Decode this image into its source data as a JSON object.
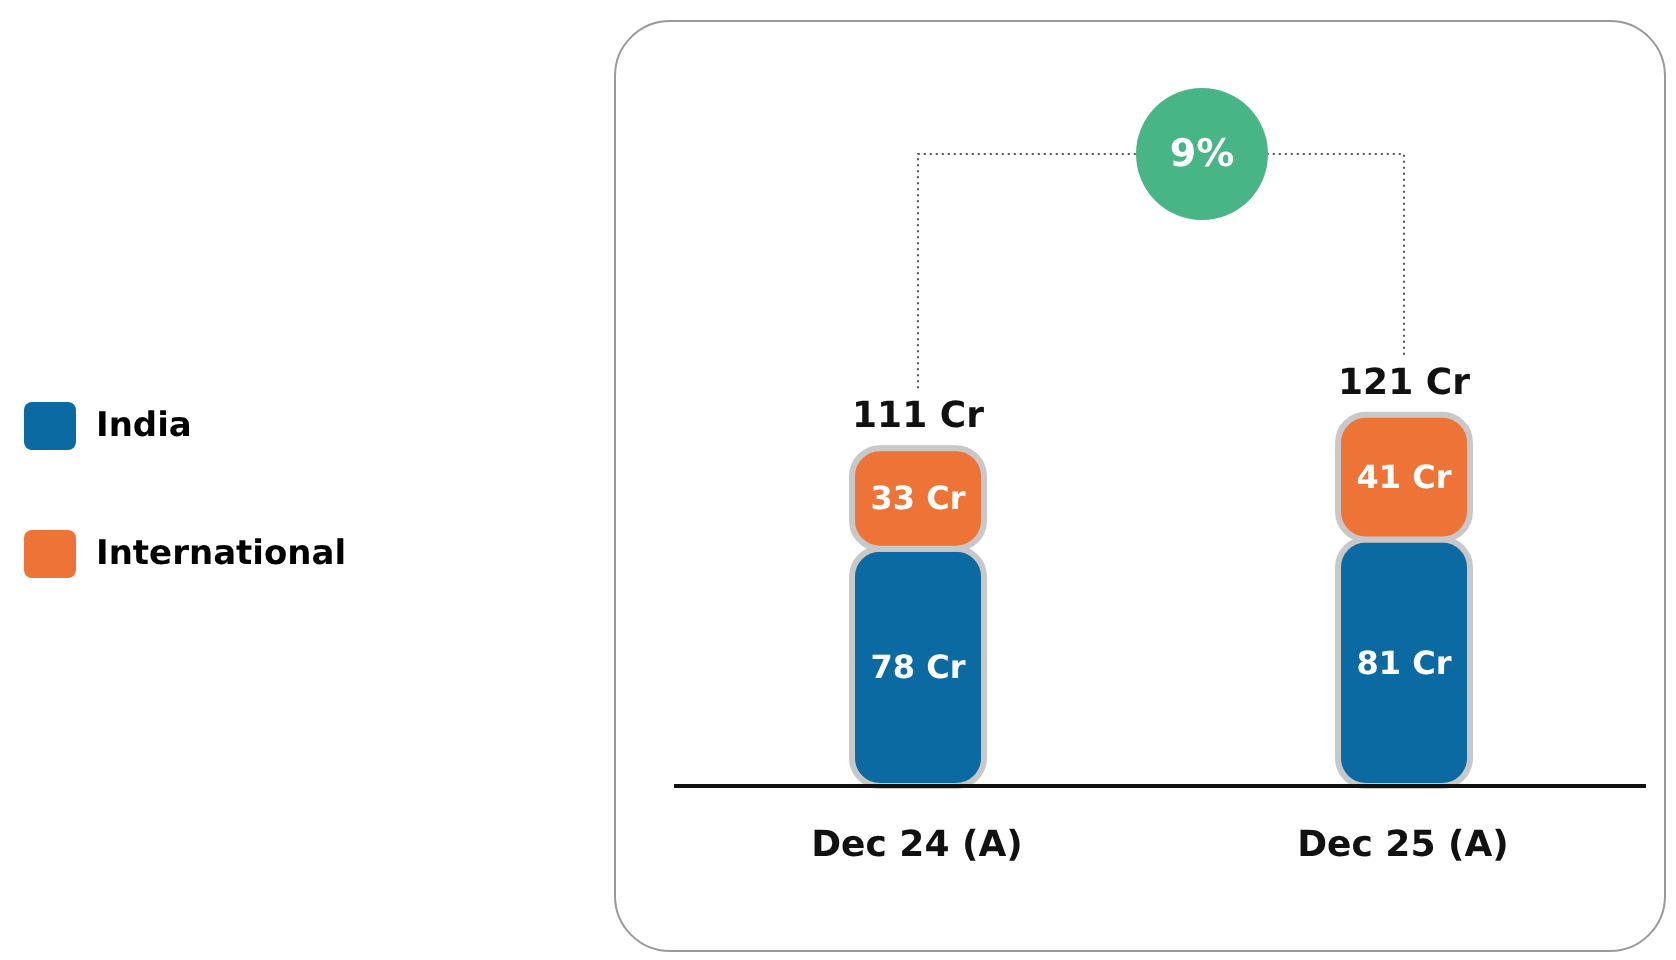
{
  "chart_data": {
    "type": "bar",
    "stacked": true,
    "categories": [
      "Dec 24 (A)",
      "Dec 25 (A)"
    ],
    "series": [
      {
        "name": "India",
        "color": "#0a6aa1",
        "values": [
          78,
          81
        ],
        "value_labels": [
          "78 Cr",
          "81 Cr"
        ]
      },
      {
        "name": "International",
        "color": "#ed7436",
        "values": [
          33,
          41
        ],
        "value_labels": [
          "33 Cr",
          "41 Cr"
        ]
      }
    ],
    "totals": [
      "111 Cr",
      "121 Cr"
    ],
    "annotations": [
      "9%"
    ],
    "legend": "left"
  }
}
